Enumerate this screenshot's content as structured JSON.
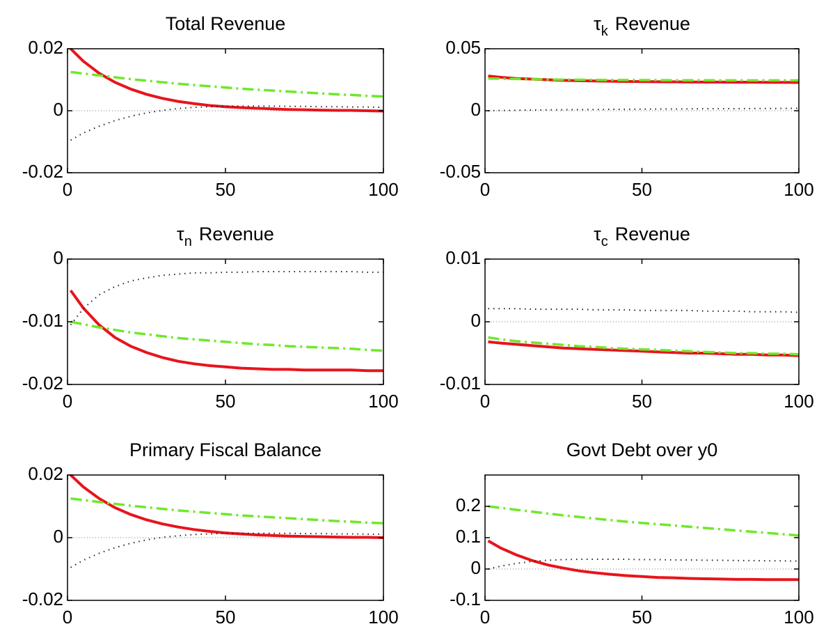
{
  "chart_data": [
    {
      "type": "line",
      "title": "Total Revenue",
      "x": [
        1,
        5,
        10,
        15,
        20,
        25,
        30,
        35,
        40,
        45,
        50,
        55,
        60,
        65,
        70,
        75,
        80,
        85,
        90,
        95,
        100
      ],
      "xlim": [
        0,
        100
      ],
      "xticks": [
        0,
        50,
        100
      ],
      "ylim": [
        -0.02,
        0.02
      ],
      "yticks": [
        -0.02,
        0,
        0.02
      ],
      "hline": 0,
      "series": [
        {
          "color": "#e8141c",
          "style": "solid",
          "values": [
            0.02,
            0.016,
            0.0121,
            0.0092,
            0.007,
            0.0053,
            0.004,
            0.003,
            0.0023,
            0.0017,
            0.0013,
            0.001,
            0.0008,
            0.0006,
            0.0004,
            0.0003,
            0.0002,
            0.0001,
            0.0001,
            0,
            -0.0001
          ]
        },
        {
          "color": "#6fe82a",
          "style": "dashdot",
          "values": [
            0.0125,
            0.012,
            0.0114,
            0.0108,
            0.0102,
            0.0097,
            0.0092,
            0.0087,
            0.0083,
            0.0079,
            0.0075,
            0.0071,
            0.0068,
            0.0065,
            0.0062,
            0.0059,
            0.0056,
            0.0053,
            0.0051,
            0.0048,
            0.0046
          ]
        },
        {
          "color": "#222222",
          "style": "dotted",
          "values": [
            -0.0095,
            -0.0072,
            -0.005,
            -0.0032,
            -0.0018,
            -0.0007,
            0.0001,
            0.0007,
            0.0011,
            0.0013,
            0.0015,
            0.0015,
            0.0015,
            0.0015,
            0.0014,
            0.0014,
            0.0013,
            0.0013,
            0.0012,
            0.0012,
            0.0011
          ]
        }
      ]
    },
    {
      "type": "line",
      "title": {
        "symbol": "τ",
        "subscript": "k",
        "text": "Revenue"
      },
      "x": [
        1,
        5,
        10,
        15,
        20,
        25,
        30,
        35,
        40,
        45,
        50,
        55,
        60,
        65,
        70,
        75,
        80,
        85,
        90,
        95,
        100
      ],
      "xlim": [
        0,
        100
      ],
      "xticks": [
        0,
        50,
        100
      ],
      "ylim": [
        -0.05,
        0.05
      ],
      "yticks": [
        -0.05,
        0,
        0.05
      ],
      "hline": 0,
      "series": [
        {
          "color": "#e8141c",
          "style": "solid",
          "values": [
            0.028,
            0.027,
            0.026,
            0.0255,
            0.025,
            0.0245,
            0.0242,
            0.024,
            0.0238,
            0.0236,
            0.0235,
            0.0234,
            0.0233,
            0.0232,
            0.0231,
            0.0231,
            0.023,
            0.023,
            0.0229,
            0.0229,
            0.0228
          ]
        },
        {
          "color": "#6fe82a",
          "style": "dashdot",
          "values": [
            0.026,
            0.0258,
            0.0256,
            0.0254,
            0.0252,
            0.0251,
            0.025,
            0.0249,
            0.0248,
            0.0248,
            0.0247,
            0.0247,
            0.0246,
            0.0246,
            0.0246,
            0.0245,
            0.0245,
            0.0245,
            0.0245,
            0.0245,
            0.0245
          ]
        },
        {
          "color": "#222222",
          "style": "dotted",
          "values": [
            0,
            0.0002,
            0.0004,
            0.0006,
            0.0007,
            0.0008,
            0.0009,
            0.001,
            0.0011,
            0.0012,
            0.0013,
            0.0014,
            0.0014,
            0.0015,
            0.0016,
            0.0016,
            0.0017,
            0.0018,
            0.0018,
            0.0019,
            0.002
          ]
        }
      ]
    },
    {
      "type": "line",
      "title": {
        "symbol": "τ",
        "subscript": "n",
        "text": "Revenue"
      },
      "x": [
        1,
        5,
        10,
        15,
        20,
        25,
        30,
        35,
        40,
        45,
        50,
        55,
        60,
        65,
        70,
        75,
        80,
        85,
        90,
        95,
        100
      ],
      "xlim": [
        0,
        100
      ],
      "xticks": [
        0,
        50,
        100
      ],
      "ylim": [
        -0.02,
        0
      ],
      "yticks": [
        -0.02,
        -0.01,
        0
      ],
      "series": [
        {
          "color": "#e8141c",
          "style": "solid",
          "values": [
            -0.005,
            -0.0078,
            -0.0105,
            -0.0125,
            -0.0139,
            -0.0149,
            -0.0157,
            -0.0163,
            -0.0167,
            -0.017,
            -0.0172,
            -0.0174,
            -0.0175,
            -0.0176,
            -0.0176,
            -0.0177,
            -0.0177,
            -0.0177,
            -0.0177,
            -0.0178,
            -0.0178
          ]
        },
        {
          "color": "#6fe82a",
          "style": "dashdot",
          "values": [
            -0.01,
            -0.0104,
            -0.0109,
            -0.0113,
            -0.0117,
            -0.012,
            -0.0123,
            -0.0126,
            -0.0128,
            -0.013,
            -0.0132,
            -0.0134,
            -0.0136,
            -0.0137,
            -0.0139,
            -0.014,
            -0.0141,
            -0.0142,
            -0.0143,
            -0.0145,
            -0.0146
          ]
        },
        {
          "color": "#222222",
          "style": "dotted",
          "values": [
            -0.0105,
            -0.0079,
            -0.0057,
            -0.0044,
            -0.0035,
            -0.003,
            -0.0026,
            -0.0024,
            -0.0022,
            -0.0022,
            -0.0021,
            -0.0021,
            -0.002,
            -0.002,
            -0.002,
            -0.002,
            -0.002,
            -0.002,
            -0.002,
            -0.0021,
            -0.0021
          ]
        }
      ]
    },
    {
      "type": "line",
      "title": {
        "symbol": "τ",
        "subscript": "c",
        "text": "Revenue"
      },
      "x": [
        1,
        5,
        10,
        15,
        20,
        25,
        30,
        35,
        40,
        45,
        50,
        55,
        60,
        65,
        70,
        75,
        80,
        85,
        90,
        95,
        100
      ],
      "xlim": [
        0,
        100
      ],
      "xticks": [
        0,
        50,
        100
      ],
      "ylim": [
        -0.01,
        0.01
      ],
      "yticks": [
        -0.01,
        0,
        0.01
      ],
      "hline": 0,
      "series": [
        {
          "color": "#e8141c",
          "style": "solid",
          "values": [
            -0.0032,
            -0.0034,
            -0.0036,
            -0.0038,
            -0.004,
            -0.0042,
            -0.0043,
            -0.0044,
            -0.0045,
            -0.0046,
            -0.0047,
            -0.0048,
            -0.0049,
            -0.005,
            -0.005,
            -0.0051,
            -0.0052,
            -0.0052,
            -0.0053,
            -0.0053,
            -0.0054
          ]
        },
        {
          "color": "#6fe82a",
          "style": "dashdot",
          "values": [
            -0.0025,
            -0.0028,
            -0.0031,
            -0.0033,
            -0.0035,
            -0.0037,
            -0.0039,
            -0.004,
            -0.0042,
            -0.0043,
            -0.0044,
            -0.0045,
            -0.0046,
            -0.0047,
            -0.0048,
            -0.0049,
            -0.005,
            -0.005,
            -0.0051,
            -0.0051,
            -0.0052
          ]
        },
        {
          "color": "#222222",
          "style": "dotted",
          "values": [
            0.0021,
            0.0021,
            0.0021,
            0.002,
            0.002,
            0.002,
            0.002,
            0.0019,
            0.0019,
            0.0019,
            0.0018,
            0.0018,
            0.0018,
            0.0018,
            0.0017,
            0.0017,
            0.0017,
            0.0016,
            0.0016,
            0.0016,
            0.0015
          ]
        }
      ]
    },
    {
      "type": "line",
      "title": "Primary Fiscal Balance",
      "x": [
        1,
        5,
        10,
        15,
        20,
        25,
        30,
        35,
        40,
        45,
        50,
        55,
        60,
        65,
        70,
        75,
        80,
        85,
        90,
        95,
        100
      ],
      "xlim": [
        0,
        100
      ],
      "xticks": [
        0,
        50,
        100
      ],
      "ylim": [
        -0.02,
        0.02
      ],
      "yticks": [
        -0.02,
        0,
        0.02
      ],
      "hline": 0,
      "series": [
        {
          "color": "#e8141c",
          "style": "solid",
          "values": [
            0.02,
            0.0162,
            0.0125,
            0.0096,
            0.0074,
            0.0057,
            0.0044,
            0.0034,
            0.0026,
            0.002,
            0.0015,
            0.0012,
            0.0009,
            0.0007,
            0.0005,
            0.0004,
            0.0003,
            0.0002,
            0.0001,
            0.0001,
            0
          ]
        },
        {
          "color": "#6fe82a",
          "style": "dashdot",
          "values": [
            0.0125,
            0.012,
            0.0114,
            0.0108,
            0.0102,
            0.0097,
            0.0092,
            0.0087,
            0.0083,
            0.0079,
            0.0075,
            0.0071,
            0.0068,
            0.0065,
            0.0062,
            0.0059,
            0.0056,
            0.0053,
            0.0051,
            0.0048,
            0.0046
          ]
        },
        {
          "color": "#222222",
          "style": "dotted",
          "values": [
            -0.0095,
            -0.0072,
            -0.005,
            -0.0032,
            -0.0018,
            -0.0007,
            0.0001,
            0.0006,
            0.001,
            0.0012,
            0.0014,
            0.0014,
            0.0014,
            0.0014,
            0.0014,
            0.0013,
            0.0013,
            0.0012,
            0.0012,
            0.0011,
            0.0011
          ]
        }
      ]
    },
    {
      "type": "line",
      "title": "Govt Debt over y0",
      "x": [
        1,
        5,
        10,
        15,
        20,
        25,
        30,
        35,
        40,
        45,
        50,
        55,
        60,
        65,
        70,
        75,
        80,
        85,
        90,
        95,
        100
      ],
      "xlim": [
        0,
        100
      ],
      "xticks": [
        0,
        50,
        100
      ],
      "ylim": [
        -0.1,
        0.3
      ],
      "yticks": [
        -0.1,
        0,
        0.1,
        0.2
      ],
      "hline": 0,
      "series": [
        {
          "color": "#e8141c",
          "style": "solid",
          "values": [
            0.09,
            0.067,
            0.045,
            0.027,
            0.013,
            0.003,
            -0.006,
            -0.012,
            -0.017,
            -0.021,
            -0.024,
            -0.027,
            -0.028,
            -0.03,
            -0.031,
            -0.032,
            -0.033,
            -0.033,
            -0.034,
            -0.034,
            -0.034
          ]
        },
        {
          "color": "#6fe82a",
          "style": "dashdot",
          "values": [
            0.2,
            0.195,
            0.189,
            0.183,
            0.177,
            0.171,
            0.166,
            0.161,
            0.156,
            0.151,
            0.147,
            0.143,
            0.139,
            0.135,
            0.131,
            0.127,
            0.123,
            0.119,
            0.115,
            0.111,
            0.107
          ]
        },
        {
          "color": "#222222",
          "style": "dotted",
          "values": [
            0,
            0.009,
            0.018,
            0.024,
            0.028,
            0.03,
            0.031,
            0.031,
            0.031,
            0.031,
            0.03,
            0.03,
            0.029,
            0.029,
            0.028,
            0.028,
            0.027,
            0.027,
            0.026,
            0.026,
            0.025
          ]
        }
      ]
    }
  ]
}
